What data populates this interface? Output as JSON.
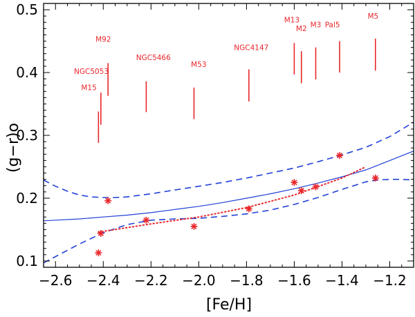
{
  "chart_data": {
    "type": "scatter",
    "title": "",
    "xlabel": "[Fe/H]",
    "ylabel": "(g−r)o",
    "xlim": [
      -2.65,
      -1.1
    ],
    "ylim": [
      0.09,
      0.51
    ],
    "x_ticks": [
      -2.6,
      -2.4,
      -2.2,
      -2.0,
      -1.8,
      -1.6,
      -1.4,
      -1.2
    ],
    "x_tick_labels": [
      "−2.6",
      "−2.4",
      "−2.2",
      "−2.0",
      "−1.8",
      "−1.6",
      "−1.4",
      "−1.2"
    ],
    "y_ticks": [
      0.1,
      0.2,
      0.3,
      0.4,
      0.5
    ],
    "y_tick_labels": [
      "0.1",
      "0.2",
      "0.3",
      "0.4",
      "0.5"
    ],
    "colors": {
      "cluster": "#e8262b",
      "fit": "#1f3fd6",
      "axis": "#000000"
    },
    "clusters": [
      {
        "name": "M15",
        "feh": -2.42,
        "y_low": 0.288,
        "y_high": 0.338,
        "star": 0.113,
        "label_x": -2.46,
        "label_y": 0.372
      },
      {
        "name": "NGC5053",
        "feh": -2.41,
        "y_low": 0.317,
        "y_high": 0.368,
        "star": 0.144,
        "label_x": -2.45,
        "label_y": 0.398
      },
      {
        "name": "M92",
        "feh": -2.38,
        "y_low": 0.363,
        "y_high": 0.415,
        "star": 0.196,
        "label_x": -2.4,
        "label_y": 0.449
      },
      {
        "name": "NGC5466",
        "feh": -2.22,
        "y_low": 0.337,
        "y_high": 0.386,
        "star": 0.165,
        "label_x": -2.19,
        "label_y": 0.42
      },
      {
        "name": "M53",
        "feh": -2.02,
        "y_low": 0.326,
        "y_high": 0.376,
        "star": 0.155,
        "label_x": -2.0,
        "label_y": 0.409
      },
      {
        "name": "NGC4147",
        "feh": -1.79,
        "y_low": 0.354,
        "y_high": 0.405,
        "star": 0.183,
        "label_x": -1.78,
        "label_y": 0.436
      },
      {
        "name": "M13",
        "feh": -1.6,
        "y_low": 0.397,
        "y_high": 0.447,
        "star": 0.225,
        "label_x": -1.61,
        "label_y": 0.48
      },
      {
        "name": "M2",
        "feh": -1.57,
        "y_low": 0.383,
        "y_high": 0.434,
        "star": 0.212,
        "label_x": -1.57,
        "label_y": 0.466
      },
      {
        "name": "M3",
        "feh": -1.51,
        "y_low": 0.389,
        "y_high": 0.44,
        "star": 0.218,
        "label_x": -1.51,
        "label_y": 0.472
      },
      {
        "name": "Pal5",
        "feh": -1.41,
        "y_low": 0.4,
        "y_high": 0.45,
        "star": 0.268,
        "label_x": -1.44,
        "label_y": 0.472
      },
      {
        "name": "M5",
        "feh": -1.26,
        "y_low": 0.403,
        "y_high": 0.454,
        "star": 0.232,
        "label_x": -1.27,
        "label_y": 0.486
      }
    ],
    "fit_solid": {
      "x": [
        -2.65,
        -2.6,
        -2.5,
        -2.4,
        -2.3,
        -2.2,
        -2.1,
        -2.0,
        -1.9,
        -1.8,
        -1.7,
        -1.6,
        -1.5,
        -1.4,
        -1.3,
        -1.2,
        -1.1
      ],
      "y": [
        0.164,
        0.165,
        0.167,
        0.17,
        0.173,
        0.177,
        0.182,
        0.187,
        0.193,
        0.2,
        0.207,
        0.215,
        0.224,
        0.234,
        0.245,
        0.26,
        0.275
      ]
    },
    "fit_dashed_upper": {
      "x": [
        -2.65,
        -2.6,
        -2.55,
        -2.5,
        -2.45,
        -2.4,
        -2.35,
        -2.3,
        -2.2,
        -2.1,
        -2.0,
        -1.9,
        -1.8,
        -1.7,
        -1.6,
        -1.5,
        -1.4,
        -1.3,
        -1.2,
        -1.1
      ],
      "y": [
        0.229,
        0.219,
        0.211,
        0.205,
        0.202,
        0.201,
        0.201,
        0.202,
        0.207,
        0.213,
        0.219,
        0.225,
        0.232,
        0.24,
        0.248,
        0.258,
        0.269,
        0.281,
        0.298,
        0.321
      ]
    },
    "fit_dashed_lower": {
      "x": [
        -2.65,
        -2.6,
        -2.5,
        -2.4,
        -2.3,
        -2.2,
        -2.1,
        -2.0,
        -1.9,
        -1.8,
        -1.7,
        -1.6,
        -1.5,
        -1.4,
        -1.35,
        -1.3,
        -1.25,
        -1.2,
        -1.15,
        -1.1
      ],
      "y": [
        0.097,
        0.107,
        0.127,
        0.145,
        0.158,
        0.165,
        0.167,
        0.168,
        0.171,
        0.175,
        0.181,
        0.19,
        0.201,
        0.214,
        0.22,
        0.226,
        0.229,
        0.23,
        0.23,
        0.229
      ]
    },
    "fit_dotted": {
      "x": [
        -2.42,
        -2.2,
        -2.0,
        -1.8,
        -1.6,
        -1.4,
        -1.3
      ],
      "y": [
        0.146,
        0.159,
        0.17,
        0.185,
        0.205,
        0.232,
        0.25
      ]
    }
  }
}
